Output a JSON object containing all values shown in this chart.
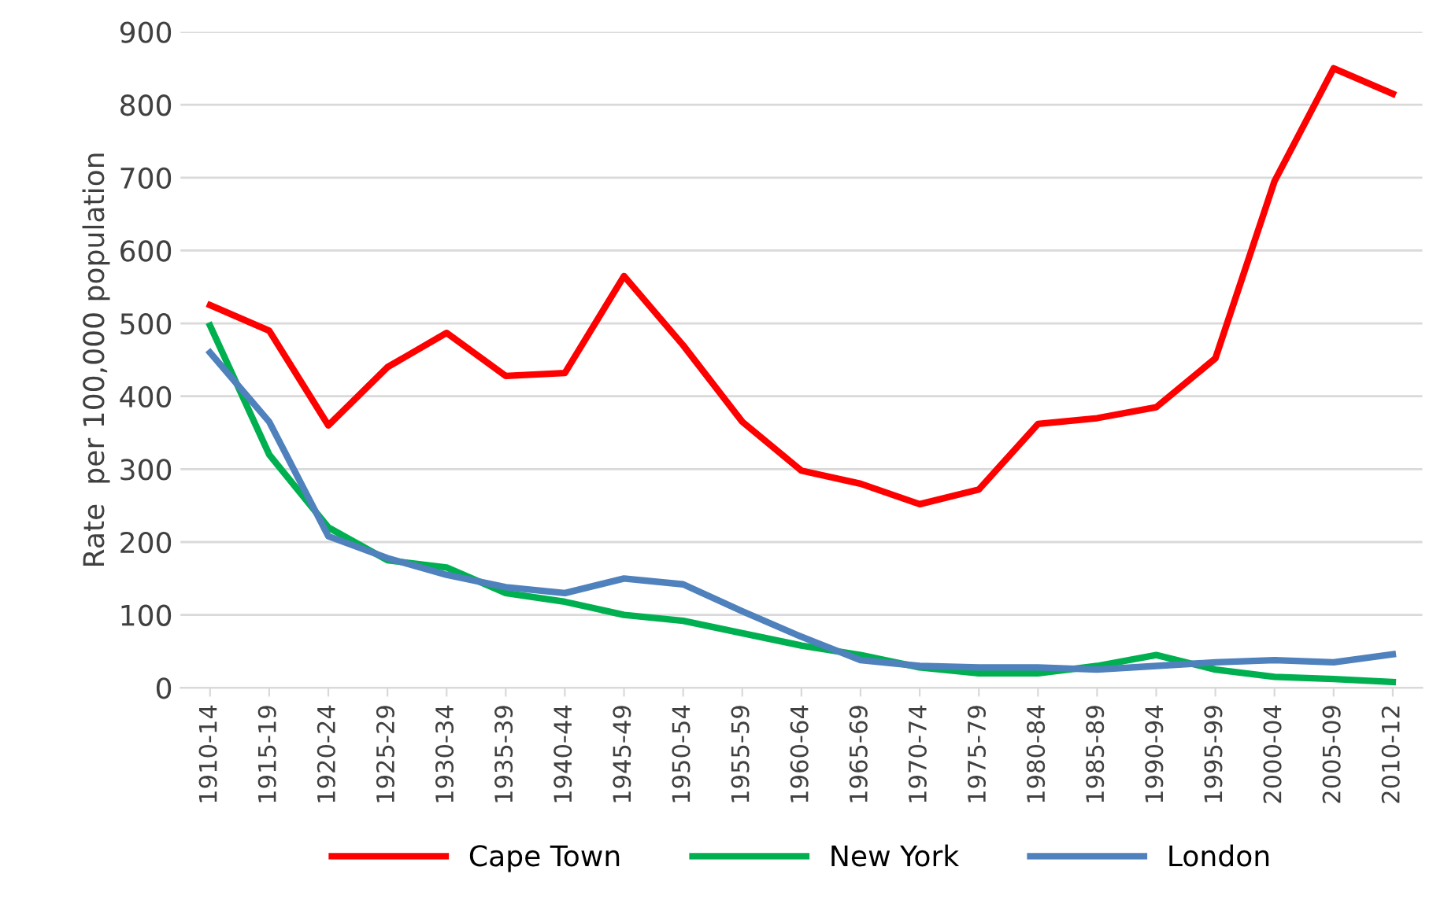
{
  "chart_data": {
    "type": "line",
    "ylabel": "Rate  per 100,000 population",
    "categories": [
      "1910-14",
      "1915-19",
      "1920-24",
      "1925-29",
      "1930-34",
      "1935-39",
      "1940-44",
      "1945-49",
      "1950-54",
      "1955-59",
      "1960-64",
      "1965-69",
      "1970-74",
      "1975-79",
      "1980-84",
      "1985-89",
      "1990-94",
      "1995-99",
      "2000-04",
      "2005-09",
      "2010-12"
    ],
    "series": [
      {
        "name": "Cape Town",
        "color": "#ff0000",
        "values": [
          525,
          490,
          360,
          440,
          487,
          428,
          432,
          565,
          470,
          365,
          298,
          280,
          252,
          272,
          362,
          370,
          385,
          452,
          695,
          850,
          815
        ]
      },
      {
        "name": "New York",
        "color": "#00b050",
        "values": [
          497,
          320,
          220,
          175,
          165,
          130,
          118,
          100,
          92,
          75,
          58,
          45,
          28,
          20,
          20,
          30,
          45,
          25,
          15,
          12,
          8
        ]
      },
      {
        "name": "London",
        "color": "#4f81bd",
        "values": [
          460,
          365,
          208,
          178,
          155,
          138,
          130,
          150,
          142,
          105,
          70,
          38,
          30,
          28,
          28,
          25,
          30,
          35,
          38,
          35,
          46
        ]
      }
    ],
    "ylim": [
      0,
      900
    ],
    "yticks": [
      0,
      100,
      200,
      300,
      400,
      500,
      600,
      700,
      800,
      900
    ],
    "grid": "y",
    "legend": "bottom",
    "marker": "none",
    "line_style": "solid"
  }
}
